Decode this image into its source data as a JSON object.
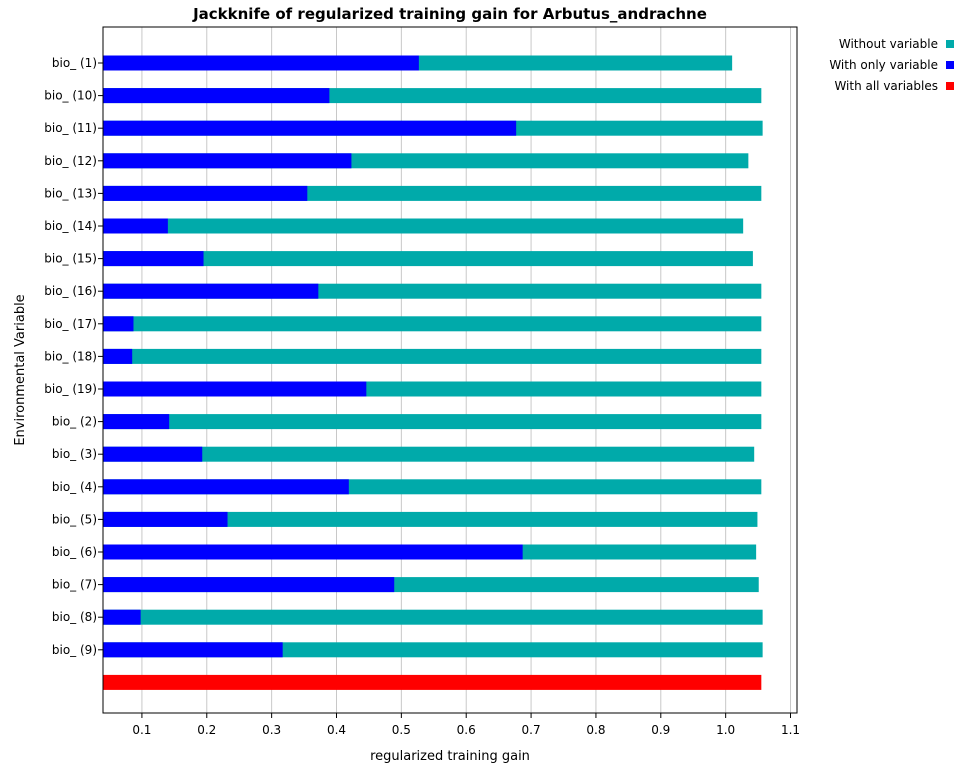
{
  "chart_data": {
    "type": "bar",
    "orientation": "horizontal",
    "title": "Jackknife of regularized training gain for Arbutus_andrachne",
    "xlabel": "regularized training gain",
    "ylabel": "Environmental Variable",
    "xlim": [
      0.04,
      1.11
    ],
    "xticks": [
      "0.1",
      "0.2",
      "0.3",
      "0.4",
      "0.5",
      "0.6",
      "0.7",
      "0.8",
      "0.9",
      "1.0",
      "1.1"
    ],
    "xtick_values": [
      0.1,
      0.2,
      0.3,
      0.4,
      0.5,
      0.6,
      0.7,
      0.8,
      0.9,
      1.0,
      1.1
    ],
    "grid": "vertical",
    "legend_position": "top-right",
    "categories": [
      "bio_ (1)",
      "bio_ (10)",
      "bio_ (11)",
      "bio_ (12)",
      "bio_ (13)",
      "bio_ (14)",
      "bio_ (15)",
      "bio_ (16)",
      "bio_ (17)",
      "bio_ (18)",
      "bio_ (19)",
      "bio_ (2)",
      "bio_ (3)",
      "bio_ (4)",
      "bio_ (5)",
      "bio_ (6)",
      "bio_ (7)",
      "bio_ (8)",
      "bio_ (9)"
    ],
    "series": [
      {
        "name": "Without variable",
        "color": "#00aaaa",
        "values": [
          1.01,
          1.055,
          1.057,
          1.035,
          1.055,
          1.027,
          1.042,
          1.055,
          1.055,
          1.055,
          1.055,
          1.055,
          1.044,
          1.055,
          1.049,
          1.047,
          1.051,
          1.057,
          1.057
        ]
      },
      {
        "name": "With only variable",
        "color": "#0000ff",
        "values": [
          0.527,
          0.389,
          0.677,
          0.423,
          0.355,
          0.14,
          0.195,
          0.372,
          0.087,
          0.085,
          0.446,
          0.142,
          0.193,
          0.419,
          0.232,
          0.687,
          0.489,
          0.098,
          0.317
        ]
      },
      {
        "name": "With all variables",
        "color": "#ff0000",
        "value": 1.055
      }
    ]
  }
}
